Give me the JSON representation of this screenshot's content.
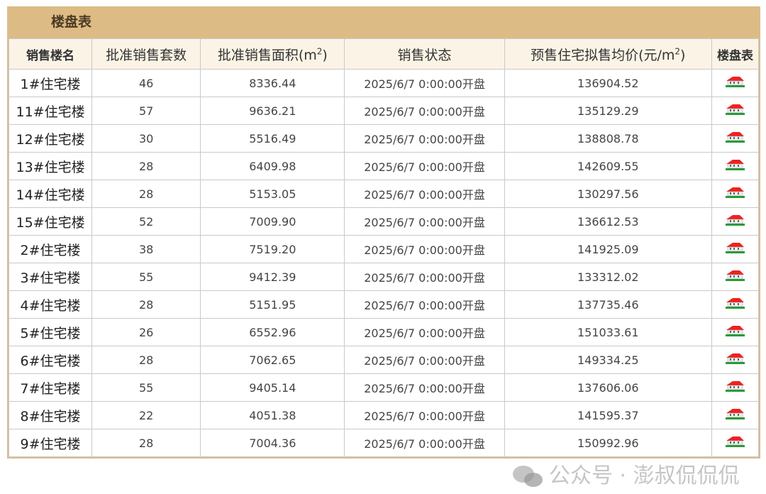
{
  "title": "楼盘表",
  "headers": [
    "销售楼名",
    "批准销售套数",
    "批准销售面积(m",
    "2",
    ")",
    "销售状态",
    "预售住宅拟售均价(元/m",
    "2",
    ")",
    "楼盘表"
  ],
  "rows": [
    [
      "1#住宅楼",
      "46",
      "8336.44",
      "2025/6/7 0:00:00开盘",
      "136904.52"
    ],
    [
      "11#住宅楼",
      "57",
      "9636.21",
      "2025/6/7 0:00:00开盘",
      "135129.29"
    ],
    [
      "12#住宅楼",
      "30",
      "5516.49",
      "2025/6/7 0:00:00开盘",
      "138808.78"
    ],
    [
      "13#住宅楼",
      "28",
      "6409.98",
      "2025/6/7 0:00:00开盘",
      "142609.55"
    ],
    [
      "14#住宅楼",
      "28",
      "5153.05",
      "2025/6/7 0:00:00开盘",
      "130297.56"
    ],
    [
      "15#住宅楼",
      "52",
      "7009.90",
      "2025/6/7 0:00:00开盘",
      "136612.53"
    ],
    [
      "2#住宅楼",
      "38",
      "7519.20",
      "2025/6/7 0:00:00开盘",
      "141925.09"
    ],
    [
      "3#住宅楼",
      "55",
      "9412.39",
      "2025/6/7 0:00:00开盘",
      "133312.02"
    ],
    [
      "4#住宅楼",
      "28",
      "5151.95",
      "2025/6/7 0:00:00开盘",
      "137735.46"
    ],
    [
      "5#住宅楼",
      "26",
      "6552.96",
      "2025/6/7 0:00:00开盘",
      "151033.61"
    ],
    [
      "6#住宅楼",
      "28",
      "7062.65",
      "2025/6/7 0:00:00开盘",
      "149334.25"
    ],
    [
      "7#住宅楼",
      "55",
      "9405.14",
      "2025/6/7 0:00:00开盘",
      "137606.06"
    ],
    [
      "8#住宅楼",
      "22",
      "4051.38",
      "2025/6/7 0:00:00开盘",
      "141595.37"
    ],
    [
      "9#住宅楼",
      "28",
      "7004.36",
      "2025/6/7 0:00:00开盘",
      "150992.96"
    ]
  ],
  "icon": "house-icon",
  "watermark": "公众号 · 澎叔侃侃侃"
}
